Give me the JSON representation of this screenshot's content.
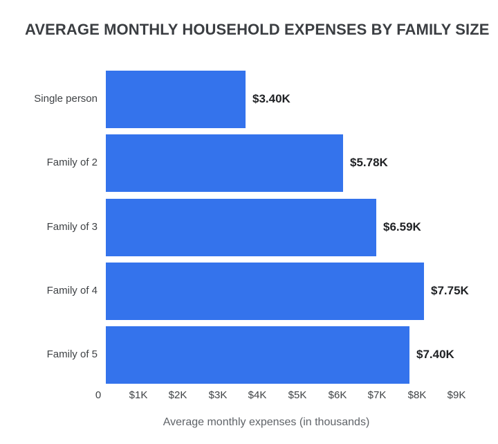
{
  "page": {
    "background": "#ffffff"
  },
  "chart_data": {
    "type": "bar",
    "orientation": "horizontal",
    "title": "AVERAGE MONTHLY HOUSEHOLD EXPENSES BY FAMILY SIZE",
    "categories": [
      "Single person",
      "Family of 2",
      "Family of 3",
      "Family of 4",
      "Family of 5"
    ],
    "values": [
      3.4,
      5.78,
      6.59,
      7.75,
      7.4
    ],
    "value_labels": [
      "$3.40K",
      "$5.78K",
      "$6.59K",
      "$7.75K",
      "$7.40K"
    ],
    "xlabel": "Average monthly expenses (in thousands)",
    "xticks": [
      "0",
      "$1K",
      "$2K",
      "$3K",
      "$4K",
      "$5K",
      "$6K",
      "$7K",
      "$8K",
      "$9K"
    ],
    "xtick_values": [
      0,
      1,
      2,
      3,
      4,
      5,
      6,
      7,
      8,
      9
    ],
    "xlim": [
      0,
      9
    ],
    "grid": false,
    "legend": false,
    "colors": {
      "bar": "#3473EC",
      "title": "#3b3e42",
      "category_label": "#3f4245",
      "value_label": "#1f2124",
      "tick_label": "#3f4245",
      "axis_label": "#5f6368"
    }
  }
}
